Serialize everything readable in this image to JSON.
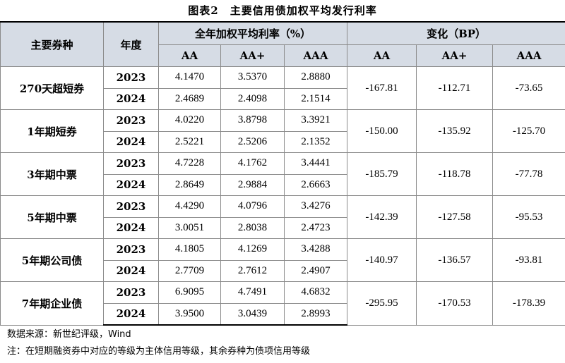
{
  "title": "图表2　主要信用债加权平均发行利率",
  "headers": {
    "type": "主要券种",
    "year": "年度",
    "rate_group": "全年加权平均利率（%）",
    "change_group": "变化（BP）",
    "grades": [
      "AA",
      "AA+",
      "AAA"
    ]
  },
  "rows": [
    {
      "type": "270天超短券",
      "y1": "2023",
      "r1": [
        "4.1470",
        "3.5370",
        "2.8880"
      ],
      "y2": "2024",
      "r2": [
        "2.4689",
        "2.4098",
        "2.1514"
      ],
      "chg": [
        "-167.81",
        "-112.71",
        "-73.65"
      ]
    },
    {
      "type": "1年期短券",
      "y1": "2023",
      "r1": [
        "4.0220",
        "3.8798",
        "3.3921"
      ],
      "y2": "2024",
      "r2": [
        "2.5221",
        "2.5206",
        "2.1352"
      ],
      "chg": [
        "-150.00",
        "-135.92",
        "-125.70"
      ]
    },
    {
      "type": "3年期中票",
      "y1": "2023",
      "r1": [
        "4.7228",
        "4.1762",
        "3.4441"
      ],
      "y2": "2024",
      "r2": [
        "2.8649",
        "2.9884",
        "2.6663"
      ],
      "chg": [
        "-185.79",
        "-118.78",
        "-77.78"
      ]
    },
    {
      "type": "5年期中票",
      "y1": "2023",
      "r1": [
        "4.4290",
        "4.0796",
        "3.4276"
      ],
      "y2": "2024",
      "r2": [
        "3.0051",
        "2.8038",
        "2.4723"
      ],
      "chg": [
        "-142.39",
        "-127.58",
        "-95.53"
      ]
    },
    {
      "type": "5年期公司债",
      "y1": "2023",
      "r1": [
        "4.1805",
        "4.1269",
        "3.4288"
      ],
      "y2": "2024",
      "r2": [
        "2.7709",
        "2.7612",
        "2.4907"
      ],
      "chg": [
        "-140.97",
        "-136.57",
        "-93.81"
      ]
    },
    {
      "type": "7年期企业债",
      "y1": "2023",
      "r1": [
        "6.9095",
        "4.7491",
        "4.6832"
      ],
      "y2": "2024",
      "r2": [
        "3.9500",
        "3.0439",
        "2.8993"
      ],
      "chg": [
        "-295.95",
        "-170.53",
        "-178.39"
      ]
    }
  ],
  "notes": {
    "source": "数据来源：新世纪评级，Wind",
    "note": "注：在短期融资券中对应的等级为主体信用等级，其余券种为债项信用等级"
  },
  "colors": {
    "header_bg": "#d6dce5",
    "border": "#8a8a8a"
  }
}
